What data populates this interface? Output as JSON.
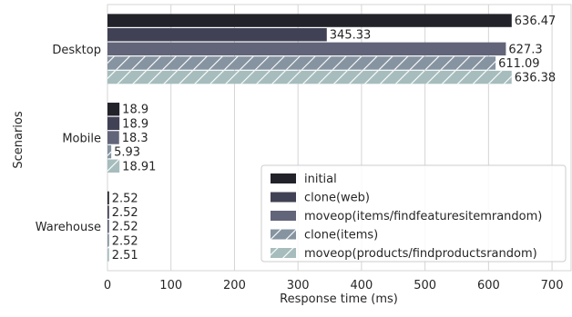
{
  "chart_data": {
    "type": "bar",
    "orientation": "horizontal",
    "xlabel": "Response time (ms)",
    "ylabel": "Scenarios",
    "xlim": [
      0,
      730
    ],
    "x_ticks": [
      0,
      100,
      200,
      300,
      400,
      500,
      600,
      700
    ],
    "grid": true,
    "legend_position": "lower-right",
    "categories": [
      "Desktop",
      "Mobile",
      "Warehouse"
    ],
    "series": [
      {
        "name": "initial",
        "values": [
          636.47,
          18.9,
          2.52
        ],
        "labels": [
          "636.47",
          "18.9",
          "2.52"
        ],
        "color": "#22222b",
        "hatch": false
      },
      {
        "name": "clone(web)",
        "values": [
          345.33,
          18.9,
          2.52
        ],
        "labels": [
          "345.33",
          "18.9",
          "2.52"
        ],
        "color": "#414155",
        "hatch": false
      },
      {
        "name": "moveop(items/findfeaturesitemrandom)",
        "values": [
          627.3,
          18.3,
          2.52
        ],
        "labels": [
          "627.3",
          "18.3",
          "2.52"
        ],
        "color": "#626479",
        "hatch": false
      },
      {
        "name": "clone(items)",
        "values": [
          611.09,
          5.93,
          2.52
        ],
        "labels": [
          "611.09",
          "5.93",
          "2.52"
        ],
        "color": "#8693a0",
        "hatch": true
      },
      {
        "name": "moveop(products/findproductsrandom)",
        "values": [
          636.38,
          18.91,
          2.51
        ],
        "labels": [
          "636.38",
          "18.91",
          "2.51"
        ],
        "color": "#a7bdbd",
        "hatch": true
      }
    ]
  }
}
